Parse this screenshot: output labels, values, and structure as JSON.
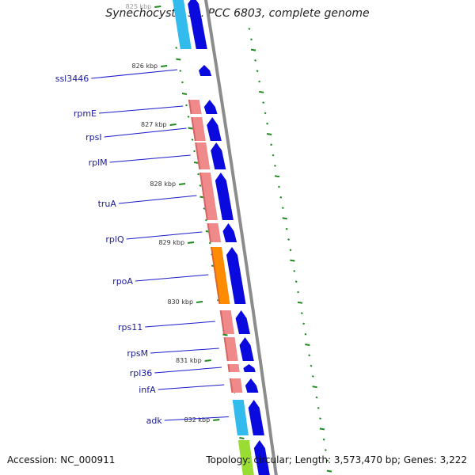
{
  "title": "Synechocystis sp. PCC 6803, complete genome",
  "footer": {
    "accession": "Accession: NC_000911",
    "stats": "Topology: circular; Length: 3,573,470 bp; Genes: 3,222"
  },
  "colors": {
    "backbone": "#8c8c8c",
    "cds_forward": "#0a0adf",
    "tick": "#1e8a1e",
    "label_line": "#1a1acc",
    "gene_name": "#1a1a9a",
    "rrna": "#f08a8a",
    "trna_light": "#33bbee",
    "trna_dark": "#00a7e6",
    "orange": "#ff8c00",
    "lime": "#99dd33"
  },
  "kbp_labels": [
    "825 kbp",
    "826 kbp",
    "827 kbp",
    "828 kbp",
    "829 kbp",
    "830 kbp",
    "831 kbp",
    "832 kbp"
  ],
  "genes": [
    {
      "name": "",
      "feature": "cyan"
    },
    {
      "name": "ssl3446",
      "feature": "none"
    },
    {
      "name": "rpmE",
      "feature": "pink"
    },
    {
      "name": "rpsI",
      "feature": "pink"
    },
    {
      "name": "rplM",
      "feature": "pink"
    },
    {
      "name": "truA",
      "feature": "pink"
    },
    {
      "name": "rplQ",
      "feature": "pink"
    },
    {
      "name": "rpoA",
      "feature": "orange"
    },
    {
      "name": "rps11",
      "feature": "pink"
    },
    {
      "name": "rpsM",
      "feature": "pink"
    },
    {
      "name": "rpl36",
      "feature": "pink"
    },
    {
      "name": "infA",
      "feature": "pink"
    },
    {
      "name": "adk",
      "feature": "cyan"
    },
    {
      "name": "",
      "feature": "lime"
    }
  ]
}
